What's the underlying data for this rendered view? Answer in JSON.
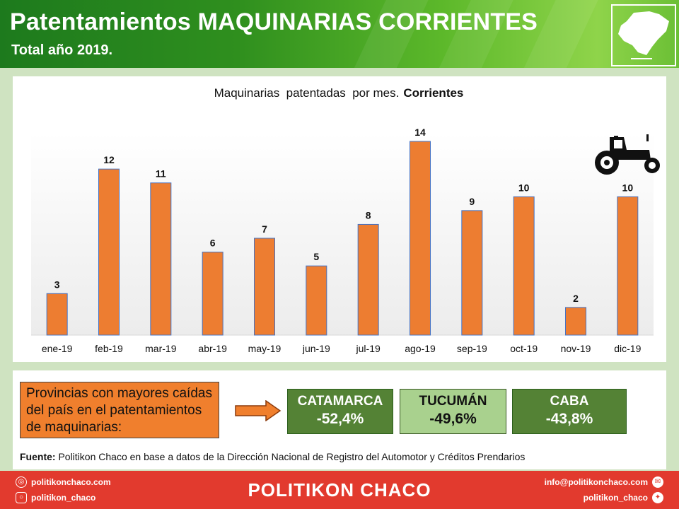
{
  "header": {
    "title": "Patentamientos MAQUINARIAS CORRIENTES",
    "subtitle": "Total año 2019."
  },
  "chart_data": {
    "type": "bar",
    "title_regular": "Maquinarias  patentadas  por mes.",
    "title_bold": "Corrientes",
    "categories": [
      "ene-19",
      "feb-19",
      "mar-19",
      "abr-19",
      "may-19",
      "jun-19",
      "jul-19",
      "ago-19",
      "sep-19",
      "oct-19",
      "nov-19",
      "dic-19"
    ],
    "values": [
      3,
      12,
      11,
      6,
      7,
      5,
      8,
      14,
      9,
      10,
      2,
      10
    ],
    "ylim": [
      0,
      14
    ],
    "grid": false,
    "bar_color": "#ed7d31",
    "bar_border_color": "#4472c4",
    "icon": "tractor-icon"
  },
  "callout": {
    "text": "Provincias con mayores caídas del país en el patentamientos de maquinarias:"
  },
  "provinces": [
    {
      "name": "CATAMARCA",
      "change": "-52,4%"
    },
    {
      "name": "TUCUMÁN",
      "change": "-49,6%"
    },
    {
      "name": "CABA",
      "change": "-43,8%"
    }
  ],
  "source": {
    "label": "Fuente:",
    "text": " Politikon Chaco en base a datos de la Dirección Nacional de Registro del Automotor  y Créditos Prendarios"
  },
  "footer": {
    "website": "politikonchaco.com",
    "instagram": "politikon_chaco",
    "brand": "POLITIKON CHACO",
    "email": "info@politikonchaco.com",
    "twitter": "politikon_chaco"
  },
  "colors": {
    "header_green": "#2f8f1e",
    "footer_red": "#e23a2e",
    "callout_orange": "#f07f2d",
    "province_dark_green": "#548235",
    "province_light_green": "#a9d18e"
  }
}
